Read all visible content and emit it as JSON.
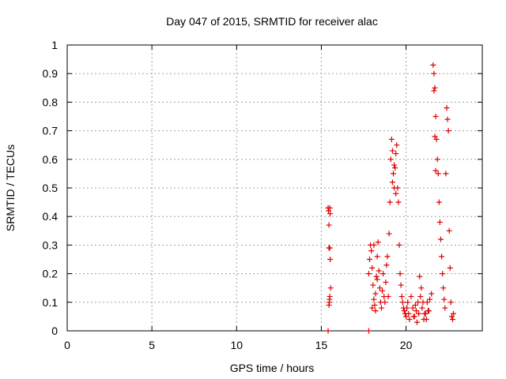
{
  "chart_data": {
    "type": "scatter",
    "title": "Day 047 of 2015, SRMTID for receiver alac",
    "xlabel": "GPS time / hours",
    "ylabel": "SRMTID / TECUs",
    "xlim": [
      0,
      24.5
    ],
    "ylim": [
      0,
      1
    ],
    "xticks": [
      0,
      5,
      10,
      15,
      20
    ],
    "xtick_labels": [
      "0",
      "5",
      "10",
      "15",
      "20"
    ],
    "yticks": [
      0,
      0.1,
      0.2,
      0.3,
      0.4,
      0.5,
      0.6,
      0.7,
      0.8,
      0.9,
      1
    ],
    "ytick_labels": [
      "0",
      "0.1",
      "0.2",
      "0.3",
      "0.4",
      "0.5",
      "0.6",
      "0.7",
      "0.8",
      "0.9",
      "1"
    ],
    "grid": true,
    "marker": "+",
    "colors": {
      "points": "#e00000",
      "grid": "#a0a0a0",
      "axis": "#000000"
    },
    "series": [
      {
        "name": "SRMTID",
        "x": [
          15.4,
          15.42,
          15.45,
          15.5,
          15.52,
          15.55,
          15.5,
          15.47,
          15.45,
          15.48,
          15.5,
          15.52,
          15.45,
          17.8,
          17.85,
          17.9,
          17.95,
          18.0,
          18.05,
          18.1,
          18.15,
          18.2,
          18.25,
          18.3,
          18.35,
          18.4,
          18.45,
          18.5,
          18.55,
          18.6,
          18.65,
          18.7,
          18.75,
          18.8,
          18.85,
          18.9,
          18.95,
          18.0,
          18.1,
          18.2,
          18.3,
          19.0,
          19.05,
          19.1,
          19.15,
          19.2,
          19.25,
          19.3,
          19.35,
          19.4,
          19.45,
          19.5,
          19.55,
          19.6,
          19.65,
          19.7,
          19.75,
          19.8,
          19.85,
          19.9,
          19.95,
          20.0,
          20.05,
          20.1,
          20.15,
          20.2,
          19.2,
          19.3,
          19.4,
          20.3,
          20.4,
          20.5,
          20.6,
          20.7,
          20.8,
          20.9,
          21.0,
          21.1,
          21.2,
          21.3,
          21.4,
          21.5,
          20.45,
          20.55,
          20.65,
          20.75,
          20.85,
          20.95,
          21.05,
          21.15,
          21.25,
          21.35,
          21.6,
          21.65,
          21.7,
          21.75,
          21.8,
          21.85,
          21.9,
          21.95,
          22.0,
          22.05,
          22.1,
          22.15,
          22.2,
          22.25,
          22.3,
          22.35,
          22.4,
          22.45,
          22.5,
          22.55,
          22.6,
          22.65,
          22.7,
          22.75,
          22.8,
          21.65,
          21.7,
          21.75,
          15.4,
          17.8
        ],
        "y": [
          0.43,
          0.42,
          0.37,
          0.29,
          0.25,
          0.15,
          0.12,
          0.1,
          0.09,
          0.11,
          0.43,
          0.41,
          0.29,
          0.2,
          0.25,
          0.3,
          0.28,
          0.22,
          0.16,
          0.11,
          0.09,
          0.13,
          0.19,
          0.26,
          0.31,
          0.21,
          0.15,
          0.1,
          0.08,
          0.14,
          0.2,
          0.12,
          0.1,
          0.17,
          0.23,
          0.26,
          0.12,
          0.08,
          0.3,
          0.07,
          0.18,
          0.34,
          0.45,
          0.6,
          0.67,
          0.63,
          0.55,
          0.5,
          0.57,
          0.62,
          0.65,
          0.5,
          0.45,
          0.3,
          0.2,
          0.16,
          0.12,
          0.1,
          0.08,
          0.07,
          0.06,
          0.05,
          0.08,
          0.1,
          0.06,
          0.04,
          0.52,
          0.58,
          0.48,
          0.12,
          0.08,
          0.05,
          0.07,
          0.1,
          0.19,
          0.15,
          0.1,
          0.06,
          0.04,
          0.07,
          0.11,
          0.13,
          0.05,
          0.09,
          0.03,
          0.06,
          0.12,
          0.08,
          0.04,
          0.06,
          0.1,
          0.07,
          0.93,
          0.9,
          0.85,
          0.75,
          0.67,
          0.6,
          0.55,
          0.45,
          0.38,
          0.32,
          0.26,
          0.2,
          0.15,
          0.11,
          0.08,
          0.55,
          0.78,
          0.74,
          0.7,
          0.35,
          0.22,
          0.1,
          0.05,
          0.04,
          0.06,
          0.84,
          0.68,
          0.56,
          0.0,
          0.0
        ]
      }
    ]
  }
}
